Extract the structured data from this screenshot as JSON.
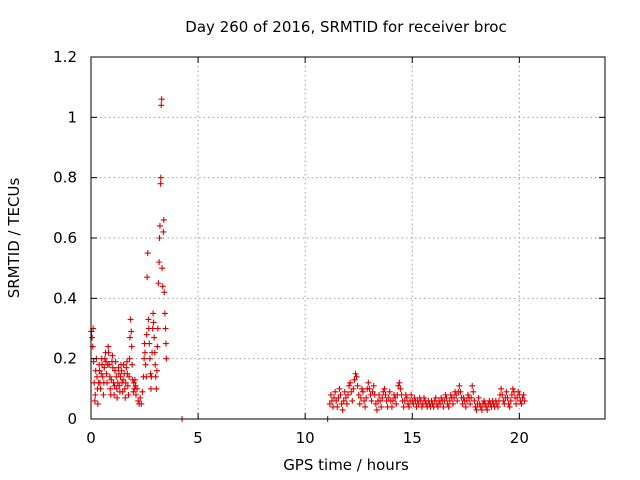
{
  "chart_data": {
    "type": "scatter",
    "title": "Day 260 of 2016, SRMTID for receiver broc",
    "xlabel": "GPS time / hours",
    "ylabel": "SRMTID / TECUs",
    "xlim": [
      0,
      24
    ],
    "ylim": [
      0,
      1.2
    ],
    "x_ticks": [
      0,
      5,
      10,
      15,
      20
    ],
    "y_ticks": [
      0,
      0.2,
      0.4,
      0.6,
      0.8,
      1.0,
      1.2
    ],
    "x_tick_labels": [
      "0",
      "5",
      "10",
      "15",
      "20"
    ],
    "y_tick_labels": [
      "0",
      "0.2",
      "0.4",
      "0.6",
      "0.8",
      "1",
      "1.2"
    ],
    "grid": true,
    "marker": "+",
    "color": "#e00000",
    "series": [
      {
        "points": [
          [
            0.02,
            0.29
          ],
          [
            0.05,
            0.27
          ],
          [
            0.08,
            0.24
          ],
          [
            0.1,
            0.3
          ],
          [
            0.12,
            0.19
          ],
          [
            0.15,
            0.12
          ],
          [
            0.18,
            0.06
          ],
          [
            0.2,
            0.08
          ],
          [
            0.22,
            0.16
          ],
          [
            0.25,
            0.2
          ],
          [
            0.28,
            0.14
          ],
          [
            0.3,
            0.1
          ],
          [
            0.32,
            0.05
          ],
          [
            0.35,
            0.12
          ],
          [
            0.38,
            0.18
          ],
          [
            0.4,
            0.16
          ],
          [
            0.42,
            0.12
          ],
          [
            0.45,
            0.1
          ],
          [
            0.48,
            0.15
          ],
          [
            0.5,
            0.2
          ],
          [
            0.52,
            0.18
          ],
          [
            0.55,
            0.14
          ],
          [
            0.58,
            0.08
          ],
          [
            0.6,
            0.12
          ],
          [
            0.62,
            0.17
          ],
          [
            0.65,
            0.2
          ],
          [
            0.68,
            0.22
          ],
          [
            0.7,
            0.19
          ],
          [
            0.72,
            0.15
          ],
          [
            0.75,
            0.12
          ],
          [
            0.78,
            0.18
          ],
          [
            0.8,
            0.24
          ],
          [
            0.82,
            0.22
          ],
          [
            0.85,
            0.18
          ],
          [
            0.88,
            0.14
          ],
          [
            0.9,
            0.1
          ],
          [
            0.92,
            0.08
          ],
          [
            0.95,
            0.13
          ],
          [
            0.98,
            0.19
          ],
          [
            1.0,
            0.21
          ],
          [
            1.02,
            0.17
          ],
          [
            1.05,
            0.12
          ],
          [
            1.08,
            0.08
          ],
          [
            1.1,
            0.11
          ],
          [
            1.12,
            0.16
          ],
          [
            1.15,
            0.19
          ],
          [
            1.18,
            0.14
          ],
          [
            1.2,
            0.1
          ],
          [
            1.22,
            0.07
          ],
          [
            1.25,
            0.12
          ],
          [
            1.28,
            0.17
          ],
          [
            1.3,
            0.15
          ],
          [
            1.32,
            0.11
          ],
          [
            1.35,
            0.09
          ],
          [
            1.38,
            0.14
          ],
          [
            1.4,
            0.18
          ],
          [
            1.42,
            0.16
          ],
          [
            1.45,
            0.12
          ],
          [
            1.48,
            0.09
          ],
          [
            1.5,
            0.13
          ],
          [
            1.52,
            0.18
          ],
          [
            1.55,
            0.15
          ],
          [
            1.58,
            0.1
          ],
          [
            1.6,
            0.07
          ],
          [
            1.62,
            0.12
          ],
          [
            1.65,
            0.17
          ],
          [
            1.68,
            0.19
          ],
          [
            1.7,
            0.15
          ],
          [
            1.72,
            0.11
          ],
          [
            1.75,
            0.08
          ],
          [
            1.78,
            0.14
          ],
          [
            1.8,
            0.2
          ],
          [
            1.82,
            0.27
          ],
          [
            1.85,
            0.33
          ],
          [
            1.88,
            0.29
          ],
          [
            1.9,
            0.24
          ],
          [
            1.92,
            0.18
          ],
          [
            1.95,
            0.13
          ],
          [
            1.98,
            0.09
          ],
          [
            2.0,
            0.12
          ],
          [
            2.02,
            0.1
          ],
          [
            2.05,
            0.13
          ],
          [
            2.08,
            0.11
          ],
          [
            2.1,
            0.08
          ],
          [
            2.15,
            0.1
          ],
          [
            2.2,
            0.06
          ],
          [
            2.25,
            0.05
          ],
          [
            2.3,
            0.07
          ],
          [
            2.35,
            0.05
          ],
          [
            2.4,
            0.09
          ],
          [
            2.45,
            0.14
          ],
          [
            2.48,
            0.2
          ],
          [
            2.5,
            0.25
          ],
          [
            2.52,
            0.22
          ],
          [
            2.55,
            0.18
          ],
          [
            2.58,
            0.14
          ],
          [
            2.6,
            0.28
          ],
          [
            2.62,
            0.47
          ],
          [
            2.65,
            0.55
          ],
          [
            2.68,
            0.33
          ],
          [
            2.7,
            0.3
          ],
          [
            2.72,
            0.25
          ],
          [
            2.75,
            0.2
          ],
          [
            2.78,
            0.15
          ],
          [
            2.8,
            0.1
          ],
          [
            2.82,
            0.14
          ],
          [
            2.85,
            0.22
          ],
          [
            2.88,
            0.3
          ],
          [
            2.9,
            0.35
          ],
          [
            2.92,
            0.32
          ],
          [
            2.95,
            0.27
          ],
          [
            2.98,
            0.22
          ],
          [
            3.0,
            0.18
          ],
          [
            3.02,
            0.14
          ],
          [
            3.05,
            0.1
          ],
          [
            3.08,
            0.16
          ],
          [
            3.1,
            0.24
          ],
          [
            3.12,
            0.3
          ],
          [
            3.15,
            0.45
          ],
          [
            3.18,
            0.52
          ],
          [
            3.2,
            0.6
          ],
          [
            3.22,
            0.64
          ],
          [
            3.25,
            0.78
          ],
          [
            3.26,
            0.8
          ],
          [
            3.28,
            1.04
          ],
          [
            3.3,
            1.06
          ],
          [
            3.32,
            0.5
          ],
          [
            3.35,
            0.44
          ],
          [
            3.38,
            0.62
          ],
          [
            3.4,
            0.66
          ],
          [
            3.42,
            0.42
          ],
          [
            3.45,
            0.35
          ],
          [
            3.48,
            0.3
          ],
          [
            3.5,
            0.25
          ],
          [
            3.52,
            0.2
          ],
          [
            4.25,
            0.0
          ],
          [
            11.05,
            0.0
          ],
          [
            11.15,
            0.05
          ],
          [
            11.2,
            0.08
          ],
          [
            11.25,
            0.06
          ],
          [
            11.3,
            0.04
          ],
          [
            11.35,
            0.07
          ],
          [
            11.4,
            0.09
          ],
          [
            11.45,
            0.06
          ],
          [
            11.5,
            0.04
          ],
          [
            11.55,
            0.07
          ],
          [
            11.6,
            0.1
          ],
          [
            11.65,
            0.08
          ],
          [
            11.7,
            0.05
          ],
          [
            11.75,
            0.03
          ],
          [
            11.8,
            0.06
          ],
          [
            11.85,
            0.09
          ],
          [
            11.9,
            0.07
          ],
          [
            11.95,
            0.05
          ],
          [
            12.0,
            0.08
          ],
          [
            12.05,
            0.11
          ],
          [
            12.1,
            0.12
          ],
          [
            12.15,
            0.09
          ],
          [
            12.2,
            0.06
          ],
          [
            12.25,
            0.1
          ],
          [
            12.3,
            0.13
          ],
          [
            12.35,
            0.15
          ],
          [
            12.4,
            0.14
          ],
          [
            12.45,
            0.11
          ],
          [
            12.5,
            0.08
          ],
          [
            12.55,
            0.05
          ],
          [
            12.6,
            0.07
          ],
          [
            12.65,
            0.1
          ],
          [
            12.7,
            0.09
          ],
          [
            12.75,
            0.06
          ],
          [
            12.8,
            0.04
          ],
          [
            12.85,
            0.07
          ],
          [
            12.9,
            0.1
          ],
          [
            12.95,
            0.12
          ],
          [
            13.0,
            0.1
          ],
          [
            13.05,
            0.08
          ],
          [
            13.1,
            0.06
          ],
          [
            13.15,
            0.09
          ],
          [
            13.2,
            0.11
          ],
          [
            13.25,
            0.08
          ],
          [
            13.3,
            0.05
          ],
          [
            13.35,
            0.03
          ],
          [
            13.4,
            0.06
          ],
          [
            13.45,
            0.08
          ],
          [
            13.5,
            0.06
          ],
          [
            13.55,
            0.04
          ],
          [
            13.6,
            0.07
          ],
          [
            13.65,
            0.09
          ],
          [
            13.7,
            0.1
          ],
          [
            13.75,
            0.08
          ],
          [
            13.8,
            0.06
          ],
          [
            13.85,
            0.04
          ],
          [
            13.9,
            0.07
          ],
          [
            13.95,
            0.09
          ],
          [
            14.0,
            0.06
          ],
          [
            14.05,
            0.04
          ],
          [
            14.1,
            0.06
          ],
          [
            14.15,
            0.08
          ],
          [
            14.2,
            0.07
          ],
          [
            14.25,
            0.05
          ],
          [
            14.3,
            0.08
          ],
          [
            14.35,
            0.11
          ],
          [
            14.4,
            0.12
          ],
          [
            14.45,
            0.1
          ],
          [
            14.5,
            0.08
          ],
          [
            14.55,
            0.06
          ],
          [
            14.6,
            0.04
          ],
          [
            14.65,
            0.06
          ],
          [
            14.7,
            0.08
          ],
          [
            14.75,
            0.07
          ],
          [
            14.8,
            0.05
          ],
          [
            14.85,
            0.04
          ],
          [
            14.9,
            0.06
          ],
          [
            14.95,
            0.08
          ],
          [
            15.0,
            0.06
          ],
          [
            15.05,
            0.05
          ],
          [
            15.1,
            0.07
          ],
          [
            15.15,
            0.06
          ],
          [
            15.2,
            0.04
          ],
          [
            15.25,
            0.06
          ],
          [
            15.3,
            0.05
          ],
          [
            15.35,
            0.07
          ],
          [
            15.4,
            0.06
          ],
          [
            15.45,
            0.04
          ],
          [
            15.5,
            0.05
          ],
          [
            15.55,
            0.07
          ],
          [
            15.6,
            0.06
          ],
          [
            15.65,
            0.05
          ],
          [
            15.7,
            0.04
          ],
          [
            15.75,
            0.06
          ],
          [
            15.8,
            0.05
          ],
          [
            15.85,
            0.04
          ],
          [
            15.9,
            0.06
          ],
          [
            15.95,
            0.05
          ],
          [
            16.0,
            0.04
          ],
          [
            16.05,
            0.06
          ],
          [
            16.1,
            0.07
          ],
          [
            16.15,
            0.05
          ],
          [
            16.2,
            0.04
          ],
          [
            16.25,
            0.06
          ],
          [
            16.3,
            0.05
          ],
          [
            16.35,
            0.07
          ],
          [
            16.4,
            0.06
          ],
          [
            16.45,
            0.04
          ],
          [
            16.5,
            0.06
          ],
          [
            16.55,
            0.08
          ],
          [
            16.6,
            0.07
          ],
          [
            16.65,
            0.05
          ],
          [
            16.7,
            0.04
          ],
          [
            16.75,
            0.06
          ],
          [
            16.8,
            0.08
          ],
          [
            16.85,
            0.07
          ],
          [
            16.9,
            0.05
          ],
          [
            16.95,
            0.07
          ],
          [
            17.0,
            0.09
          ],
          [
            17.05,
            0.08
          ],
          [
            17.1,
            0.06
          ],
          [
            17.15,
            0.09
          ],
          [
            17.2,
            0.11
          ],
          [
            17.25,
            0.09
          ],
          [
            17.3,
            0.07
          ],
          [
            17.35,
            0.05
          ],
          [
            17.4,
            0.07
          ],
          [
            17.45,
            0.06
          ],
          [
            17.5,
            0.04
          ],
          [
            17.55,
            0.06
          ],
          [
            17.6,
            0.08
          ],
          [
            17.65,
            0.07
          ],
          [
            17.7,
            0.05
          ],
          [
            17.75,
            0.07
          ],
          [
            17.8,
            0.11
          ],
          [
            17.85,
            0.09
          ],
          [
            17.9,
            0.06
          ],
          [
            17.95,
            0.04
          ],
          [
            18.0,
            0.03
          ],
          [
            18.05,
            0.05
          ],
          [
            18.1,
            0.07
          ],
          [
            18.15,
            0.05
          ],
          [
            18.2,
            0.04
          ],
          [
            18.25,
            0.03
          ],
          [
            18.3,
            0.05
          ],
          [
            18.35,
            0.06
          ],
          [
            18.4,
            0.05
          ],
          [
            18.45,
            0.04
          ],
          [
            18.5,
            0.03
          ],
          [
            18.55,
            0.05
          ],
          [
            18.6,
            0.06
          ],
          [
            18.65,
            0.05
          ],
          [
            18.7,
            0.04
          ],
          [
            18.75,
            0.06
          ],
          [
            18.8,
            0.05
          ],
          [
            18.85,
            0.04
          ],
          [
            18.9,
            0.06
          ],
          [
            18.95,
            0.05
          ],
          [
            19.0,
            0.04
          ],
          [
            19.05,
            0.06
          ],
          [
            19.1,
            0.08
          ],
          [
            19.15,
            0.1
          ],
          [
            19.2,
            0.08
          ],
          [
            19.25,
            0.06
          ],
          [
            19.3,
            0.05
          ],
          [
            19.35,
            0.07
          ],
          [
            19.4,
            0.09
          ],
          [
            19.45,
            0.07
          ],
          [
            19.5,
            0.05
          ],
          [
            19.55,
            0.04
          ],
          [
            19.6,
            0.06
          ],
          [
            19.65,
            0.08
          ],
          [
            19.7,
            0.1
          ],
          [
            19.75,
            0.09
          ],
          [
            19.8,
            0.07
          ],
          [
            19.85,
            0.05
          ],
          [
            19.9,
            0.07
          ],
          [
            19.95,
            0.09
          ],
          [
            20.0,
            0.08
          ],
          [
            20.05,
            0.06
          ],
          [
            20.1,
            0.05
          ],
          [
            20.15,
            0.07
          ],
          [
            20.2,
            0.08
          ],
          [
            20.25,
            0.06
          ]
        ]
      }
    ]
  }
}
